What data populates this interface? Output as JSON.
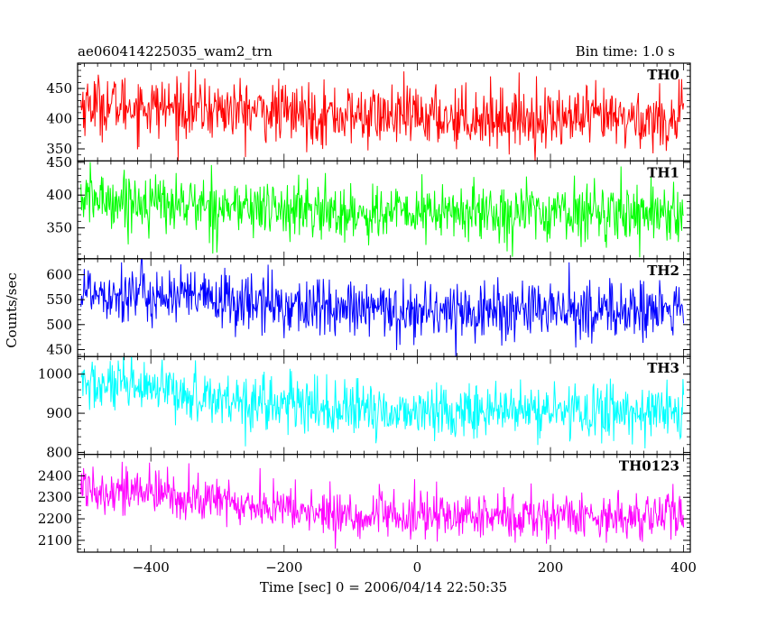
{
  "chart_data": {
    "type": "line",
    "title_left": "ae060414225035_wam2_trn",
    "title_right": "Bin time: 1.0 s",
    "xlabel": "Time [sec] 0 = 2006/04/14 22:50:35",
    "ylabel": "Counts/sec",
    "xlim": [
      -510,
      410
    ],
    "xticks": [
      -400,
      -200,
      0,
      200,
      400
    ],
    "panels": [
      {
        "name": "TH0",
        "color": "#ff0000",
        "ylim": [
          330,
          492
        ],
        "yticks": [
          350,
          400,
          450
        ],
        "start_level": 425,
        "end_level": 398,
        "mid_level": 405,
        "noise": 25
      },
      {
        "name": "TH1",
        "color": "#00ff00",
        "ylim": [
          303,
          452
        ],
        "yticks": [
          350,
          400,
          450
        ],
        "start_level": 395,
        "end_level": 375,
        "mid_level": 372,
        "noise": 22
      },
      {
        "name": "TH2",
        "color": "#0000ff",
        "ylim": [
          436,
          632
        ],
        "yticks": [
          450,
          500,
          550,
          600
        ],
        "start_level": 570,
        "end_level": 528,
        "mid_level": 528,
        "noise": 30
      },
      {
        "name": "TH3",
        "color": "#00ffff",
        "ylim": [
          795,
          1045
        ],
        "yticks": [
          800,
          900,
          1000
        ],
        "start_level": 975,
        "end_level": 905,
        "mid_level": 905,
        "noise": 35
      },
      {
        "name": "TH0123",
        "color": "#ff00ff",
        "ylim": [
          2045,
          2500
        ],
        "yticks": [
          2100,
          2200,
          2300,
          2400
        ],
        "start_level": 2355,
        "end_level": 2215,
        "mid_level": 2210,
        "noise": 55
      }
    ]
  }
}
